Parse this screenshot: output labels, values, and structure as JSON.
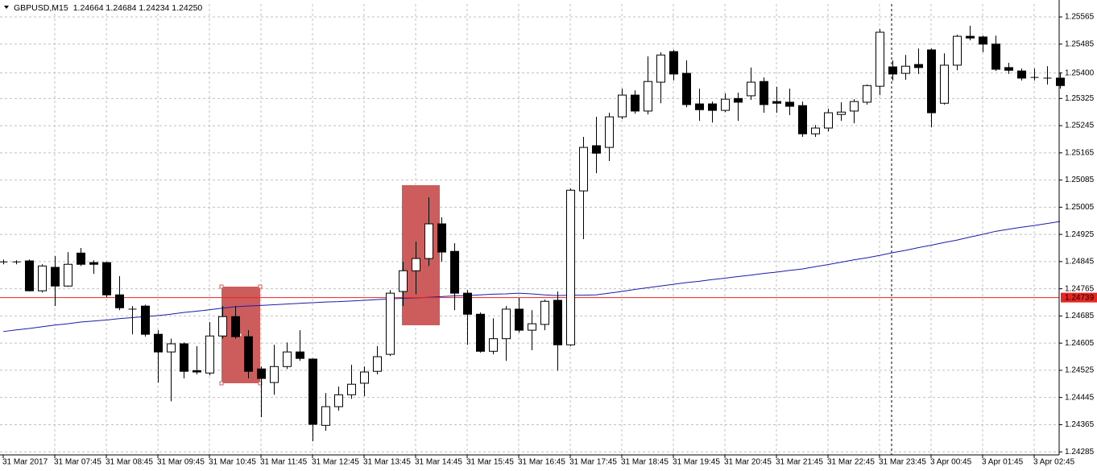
{
  "chart_data": {
    "type": "candlestick",
    "title": "GBPUSD,M15",
    "subtitle": "1.24664 1.24684 1.24234 1.24250",
    "categories": [
      "31 Mar 2017",
      null,
      null,
      null,
      "31 Mar 07:45",
      null,
      null,
      null,
      "31 Mar 08:45",
      null,
      null,
      null,
      "31 Mar 09:45",
      null,
      null,
      null,
      "31 Mar 10:45",
      null,
      null,
      null,
      "31 Mar 11:45",
      null,
      null,
      null,
      "31 Mar 12:45",
      null,
      null,
      null,
      "31 Mar 13:45",
      null,
      null,
      null,
      "31 Mar 14:45",
      null,
      null,
      null,
      "31 Mar 15:45",
      null,
      null,
      null,
      "31 Mar 16:45",
      null,
      null,
      null,
      "31 Mar 17:45",
      null,
      null,
      null,
      "31 Mar 18:45",
      null,
      null,
      null,
      "31 Mar 19:45",
      null,
      null,
      null,
      "31 Mar 20:45",
      null,
      null,
      null,
      "31 Mar 21:45",
      null,
      null,
      null,
      "31 Mar 22:45",
      null,
      null,
      null,
      "31 Mar 23:45",
      null,
      null,
      null,
      "3 Apr 00:45",
      null,
      null,
      null,
      "3 Apr 01:45",
      null,
      null,
      null,
      "3 Apr 02:45",
      null,
      null
    ],
    "open": [
      1.24844,
      1.24844,
      1.24847,
      1.24759,
      1.24828,
      1.24773,
      1.2487,
      1.24842,
      1.24842,
      1.24747,
      1.24705,
      1.24714,
      1.24631,
      1.24579,
      1.24603,
      1.24524,
      1.24517,
      1.24626,
      1.24683,
      1.24624,
      1.24529,
      1.24489,
      1.24536,
      1.24579,
      1.24558,
      1.24363,
      1.24418,
      1.24453,
      1.24487,
      1.24522,
      1.24572,
      1.24757,
      1.24818,
      1.24854,
      1.24956,
      1.24875,
      1.24752,
      1.2469,
      1.24581,
      1.24618,
      1.24705,
      1.24643,
      1.2466,
      1.24731,
      1.246,
      1.25053,
      1.25186,
      1.25181,
      1.25271,
      1.25335,
      1.25288,
      1.25373,
      1.25463,
      1.25399,
      1.25309,
      1.25309,
      1.2529,
      1.25325,
      1.25333,
      1.25375,
      1.25316,
      1.25314,
      1.25304,
      1.25221,
      1.25238,
      1.25278,
      1.25288,
      1.25314,
      1.25361,
      1.25418,
      1.25399,
      1.25425,
      1.25468,
      1.25311,
      1.25423,
      1.25508,
      1.25506,
      1.25485,
      1.25416,
      1.25406,
      1.25387,
      1.25385,
      1.25385
    ],
    "high": [
      1.24851,
      1.24849,
      1.24851,
      1.24837,
      1.24861,
      1.24873,
      1.24885,
      1.24849,
      1.24844,
      1.24802,
      1.24714,
      1.24718,
      1.24643,
      1.24618,
      1.24607,
      1.24596,
      1.24667,
      1.24714,
      1.24714,
      1.24643,
      1.24536,
      1.246,
      1.24607,
      1.24643,
      1.2456,
      1.24458,
      1.24477,
      1.24541,
      1.24536,
      1.24596,
      1.24761,
      1.24844,
      1.24904,
      1.25034,
      1.24975,
      1.24899,
      1.24761,
      1.24695,
      1.24678,
      1.24714,
      1.24738,
      1.24702,
      1.24733,
      1.24757,
      1.2506,
      1.25212,
      1.25271,
      1.25283,
      1.25354,
      1.25349,
      1.25449,
      1.25461,
      1.25468,
      1.25437,
      1.25354,
      1.25316,
      1.2534,
      1.25342,
      1.25416,
      1.25387,
      1.25359,
      1.25354,
      1.25316,
      1.25247,
      1.25295,
      1.25314,
      1.25323,
      1.25366,
      1.25529,
      1.25437,
      1.25453,
      1.25472,
      1.25472,
      1.25458,
      1.25513,
      1.25539,
      1.2551,
      1.2551,
      1.2543,
      1.25413,
      1.25413,
      1.2542,
      1.25401
    ],
    "low": [
      1.24837,
      1.24837,
      1.24757,
      1.24754,
      1.24714,
      1.24771,
      1.24832,
      1.24809,
      1.2474,
      1.24702,
      1.24631,
      1.24624,
      1.24489,
      1.24434,
      1.24501,
      1.24513,
      1.2451,
      1.24618,
      1.24618,
      1.24501,
      1.24387,
      1.24453,
      1.24529,
      1.24553,
      1.24316,
      1.24347,
      1.24406,
      1.24441,
      1.24449,
      1.24513,
      1.24567,
      1.24714,
      1.24749,
      1.24832,
      1.24844,
      1.24702,
      1.246,
      1.24577,
      1.24572,
      1.24553,
      1.24636,
      1.24584,
      1.24643,
      1.24524,
      1.24596,
      1.24911,
      1.25105,
      1.25141,
      1.25264,
      1.2528,
      1.25278,
      1.25311,
      1.25378,
      1.25299,
      1.25259,
      1.25254,
      1.25285,
      1.25259,
      1.25321,
      1.25283,
      1.25283,
      1.25276,
      1.25212,
      1.25212,
      1.25228,
      1.25259,
      1.25252,
      1.25307,
      1.25335,
      1.25378,
      1.2538,
      1.25397,
      1.2524,
      1.25307,
      1.25408,
      1.25496,
      1.25461,
      1.25406,
      1.25397,
      1.25378,
      1.25378,
      1.25366,
      1.25354
    ],
    "close": [
      1.24844,
      1.24842,
      1.24759,
      1.24832,
      1.24773,
      1.24837,
      1.24837,
      1.24837,
      1.24747,
      1.24709,
      1.24705,
      1.24631,
      1.24579,
      1.24603,
      1.24522,
      1.2452,
      1.24626,
      1.24683,
      1.24624,
      1.24522,
      1.24501,
      1.24536,
      1.24579,
      1.2456,
      1.24366,
      1.24418,
      1.24453,
      1.24484,
      1.2452,
      1.24565,
      1.24752,
      1.24818,
      1.24854,
      1.24956,
      1.24873,
      1.24752,
      1.2469,
      1.24581,
      1.24618,
      1.24705,
      1.24643,
      1.24662,
      1.24728,
      1.246,
      1.25055,
      1.25181,
      1.25164,
      1.25271,
      1.25335,
      1.25288,
      1.25375,
      1.25453,
      1.25397,
      1.25307,
      1.25292,
      1.2529,
      1.25323,
      1.25314,
      1.25373,
      1.25307,
      1.25311,
      1.25302,
      1.25221,
      1.25238,
      1.25283,
      1.25285,
      1.25316,
      1.25363,
      1.2552,
      1.25397,
      1.2542,
      1.25416,
      1.25283,
      1.25423,
      1.25508,
      1.25503,
      1.25485,
      1.25411,
      1.25408,
      1.25385,
      1.25385,
      1.25385,
      1.25363
    ],
    "up_color": "#ffffff",
    "down_color": "#000000",
    "overlay_line": {
      "color": "#1c1ca8",
      "values": [
        1.24639,
        1.24644,
        1.24648,
        1.24653,
        1.24658,
        1.24662,
        1.24667,
        1.2467,
        1.24673,
        1.24677,
        1.2468,
        1.24683,
        1.24686,
        1.2469,
        1.24695,
        1.24699,
        1.24703,
        1.24708,
        1.24712,
        1.24714,
        1.24716,
        1.24718,
        1.2472,
        1.24722,
        1.24724,
        1.24726,
        1.24727,
        1.24729,
        1.24731,
        1.24733,
        1.24735,
        1.24737,
        1.24738,
        1.2474,
        1.24742,
        1.24744,
        1.24745,
        1.24747,
        1.24749,
        1.2475,
        1.24752,
        1.2475,
        1.24747,
        1.24745,
        1.24746,
        1.24746,
        1.24747,
        1.24752,
        1.24757,
        1.24763,
        1.24768,
        1.24773,
        1.24778,
        1.24783,
        1.24787,
        1.24792,
        1.24796,
        1.24801,
        1.24805,
        1.2481,
        1.24814,
        1.24819,
        1.24823,
        1.2483,
        1.24836,
        1.24843,
        1.2485,
        1.24856,
        1.24863,
        1.24871,
        1.24878,
        1.24886,
        1.24893,
        1.24901,
        1.24908,
        1.24917,
        1.24925,
        1.24934,
        1.2494,
        1.24946,
        1.24951,
        1.24957,
        1.24963
      ]
    },
    "hline": {
      "value": 1.24739,
      "color": "#e8251f"
    },
    "ylim": [
      1.24276,
      1.25603
    ],
    "yticks": [
      1.25565,
      1.25485,
      {
        "value": 1.254,
        "label": "1.25400"
      },
      1.25325,
      1.25245,
      1.25165,
      1.25085,
      1.25005,
      1.24925,
      1.24845,
      1.24765,
      1.24685,
      1.24605,
      1.24525,
      1.24445,
      1.24365,
      1.24285
    ],
    "grid": true
  }
}
